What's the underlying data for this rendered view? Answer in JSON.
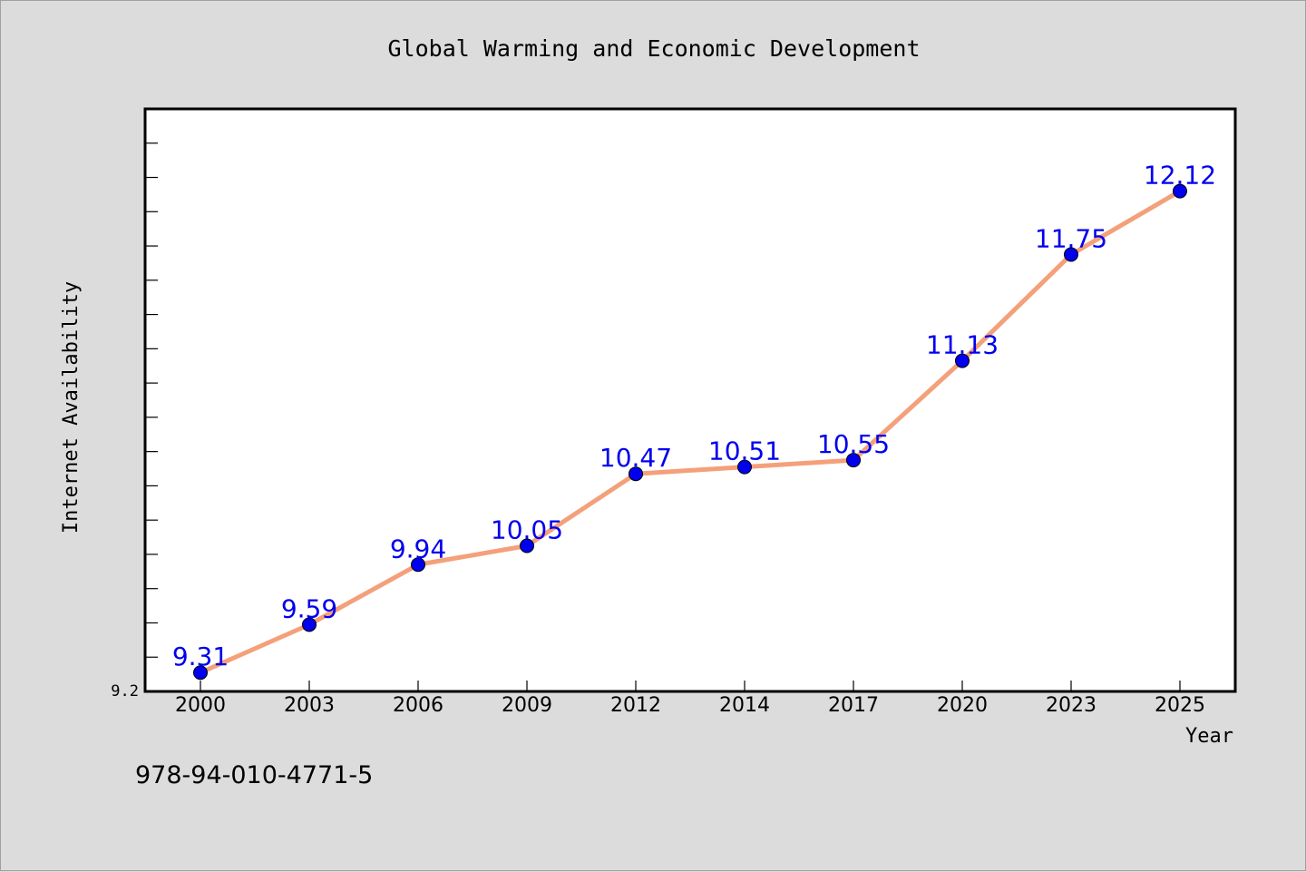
{
  "chart_data": {
    "type": "line",
    "title": "Global Warming and Economic Development",
    "xlabel": "Year",
    "ylabel": "Internet Availability",
    "categories": [
      "2000",
      "2003",
      "2006",
      "2009",
      "2012",
      "2014",
      "2017",
      "2020",
      "2023",
      "2025"
    ],
    "series": [
      {
        "values": [
          9.31,
          9.59,
          9.94,
          10.05,
          10.47,
          10.51,
          10.55,
          11.13,
          11.75,
          12.12
        ]
      }
    ],
    "data_labels": [
      "9.31",
      "9.59",
      "9.94",
      "10.05",
      "10.47",
      "10.51",
      "10.55",
      "11.13",
      "11.75",
      "12.12"
    ],
    "ylim": [
      9.2,
      12.6
    ],
    "yticks_labeled": [
      "9.2"
    ],
    "y_minor_tick_step": 0.2,
    "grid": false,
    "line_color": "#f4a07a",
    "marker_color": "#0000ee",
    "label_color": "#0000ee"
  },
  "footnote": "978-94-010-4771-5"
}
